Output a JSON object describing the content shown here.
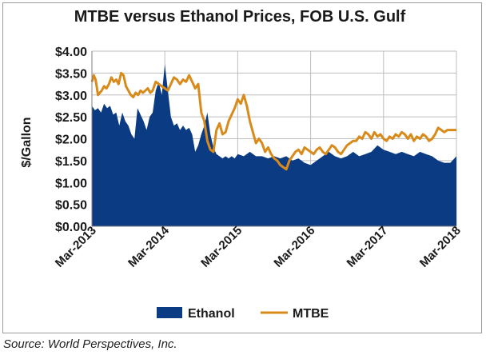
{
  "chart_data": {
    "type": "area",
    "title": "MTBE versus Ethanol Prices, FOB U.S. Gulf",
    "ylabel": "$/Gallon",
    "xlabel": "",
    "ylim": [
      0,
      4
    ],
    "yticks": [
      "$0.00",
      "$0.50",
      "$1.00",
      "$1.50",
      "$2.00",
      "$2.50",
      "$3.00",
      "$3.50",
      "$4.00"
    ],
    "yticks_values": [
      0,
      0.5,
      1,
      1.5,
      2,
      2.5,
      3,
      3.5,
      4
    ],
    "xlim": [
      0,
      60
    ],
    "xticks": [
      "Mar-2013",
      "Mar-2014",
      "Mar-2015",
      "Mar-2016",
      "Mar-2017",
      "Mar-2018"
    ],
    "xticks_values": [
      0,
      12,
      24,
      36,
      48,
      60
    ],
    "grid": true,
    "legend": "bottom",
    "series": [
      {
        "name": "Ethanol",
        "color": "#0b3b82",
        "kind": "area",
        "x": [
          0,
          0.5,
          1,
          1.5,
          2,
          2.5,
          3,
          3.5,
          4,
          4.5,
          5,
          5.5,
          6,
          6.5,
          7,
          7.5,
          8,
          8.5,
          9,
          9.5,
          10,
          10.5,
          11,
          11.5,
          12,
          12.5,
          13,
          13.5,
          14,
          14.5,
          15,
          15.5,
          16,
          16.5,
          17,
          17.5,
          18,
          18.5,
          19,
          19.5,
          20,
          20.5,
          21,
          21.5,
          22,
          22.5,
          23,
          23.5,
          24,
          25,
          26,
          27,
          28,
          29,
          30,
          31,
          32,
          33,
          34,
          35,
          36,
          37,
          38,
          39,
          40,
          41,
          42,
          43,
          44,
          45,
          46,
          47,
          48,
          49,
          50,
          51,
          52,
          53,
          54,
          55,
          56,
          57,
          58,
          59,
          60
        ],
        "y": [
          2.75,
          2.65,
          2.7,
          2.6,
          2.8,
          2.7,
          2.75,
          2.55,
          2.6,
          2.3,
          2.6,
          2.4,
          2.3,
          2.1,
          2.0,
          2.7,
          2.55,
          2.4,
          2.2,
          2.5,
          2.6,
          3.1,
          3.3,
          3.0,
          3.7,
          3.1,
          2.5,
          2.3,
          2.35,
          2.2,
          2.3,
          2.2,
          2.25,
          2.1,
          1.7,
          1.85,
          2.1,
          2.3,
          2.6,
          2.1,
          1.8,
          1.65,
          1.6,
          1.55,
          1.6,
          1.55,
          1.6,
          1.55,
          1.65,
          1.6,
          1.7,
          1.6,
          1.6,
          1.55,
          1.6,
          1.55,
          1.6,
          1.5,
          1.55,
          1.45,
          1.4,
          1.5,
          1.6,
          1.7,
          1.6,
          1.55,
          1.6,
          1.7,
          1.6,
          1.65,
          1.7,
          1.85,
          1.75,
          1.7,
          1.65,
          1.7,
          1.65,
          1.6,
          1.7,
          1.65,
          1.6,
          1.5,
          1.45,
          1.45,
          1.6
        ]
      },
      {
        "name": "MTBE",
        "color": "#d88a1a",
        "kind": "line",
        "x": [
          0,
          0.3,
          0.6,
          1,
          1.3,
          1.6,
          2,
          2.4,
          2.8,
          3.2,
          3.6,
          4,
          4.4,
          4.8,
          5.2,
          5.6,
          6,
          6.4,
          6.8,
          7.2,
          7.6,
          8,
          8.4,
          8.8,
          9.2,
          9.6,
          10,
          10.5,
          11,
          11.5,
          12,
          12.5,
          13,
          13.5,
          14,
          14.5,
          15,
          15.5,
          16,
          16.5,
          17,
          17.5,
          18,
          18.5,
          19,
          19.5,
          20,
          20.5,
          21,
          21.5,
          22,
          22.5,
          23,
          23.5,
          24,
          24.5,
          25,
          25.5,
          26,
          26.5,
          27,
          27.5,
          28,
          28.5,
          29,
          29.5,
          30,
          30.5,
          31,
          31.5,
          32,
          32.5,
          33,
          33.5,
          34,
          34.5,
          35,
          35.5,
          36,
          36.5,
          37,
          37.5,
          38,
          38.5,
          39,
          39.5,
          40,
          40.5,
          41,
          41.5,
          42,
          42.5,
          43,
          43.5,
          44,
          44.5,
          45,
          45.5,
          46,
          46.5,
          47,
          47.5,
          48,
          48.5,
          49,
          49.5,
          50,
          50.5,
          51,
          51.5,
          52,
          52.5,
          53,
          53.5,
          54,
          54.5,
          55,
          55.5,
          56,
          56.5,
          57,
          57.5,
          58,
          58.5,
          59,
          59.5,
          60
        ],
        "y": [
          3.3,
          3.45,
          3.35,
          3.0,
          3.05,
          3.1,
          3.2,
          3.15,
          3.25,
          3.4,
          3.3,
          3.35,
          3.25,
          3.5,
          3.45,
          3.2,
          3.1,
          3.0,
          2.95,
          3.05,
          3.0,
          3.1,
          3.05,
          3.1,
          3.15,
          3.05,
          3.1,
          3.3,
          3.25,
          3.2,
          3.15,
          3.1,
          3.25,
          3.4,
          3.35,
          3.25,
          3.35,
          3.3,
          3.45,
          3.3,
          3.15,
          3.25,
          2.6,
          2.4,
          1.95,
          1.75,
          1.7,
          2.2,
          2.35,
          2.1,
          2.15,
          2.4,
          2.55,
          2.7,
          2.9,
          2.8,
          3.0,
          2.75,
          2.4,
          2.15,
          1.9,
          2.0,
          1.9,
          1.7,
          1.8,
          1.65,
          1.55,
          1.5,
          1.4,
          1.35,
          1.3,
          1.5,
          1.6,
          1.7,
          1.75,
          1.65,
          1.8,
          1.75,
          1.7,
          1.65,
          1.75,
          1.8,
          1.7,
          1.65,
          1.75,
          1.85,
          1.8,
          1.7,
          1.65,
          1.75,
          1.85,
          1.9,
          1.95,
          1.95,
          2.05,
          2.0,
          2.15,
          2.1,
          2.0,
          2.15,
          2.05,
          2.1,
          2.0,
          1.95,
          2.05,
          2.0,
          2.1,
          2.05,
          2.15,
          2.1,
          2.0,
          2.1,
          1.95,
          2.05,
          2.0,
          2.1,
          2.05,
          1.95,
          2.0,
          2.1,
          2.25,
          2.2,
          2.15,
          2.2,
          2.2,
          2.2,
          2.2
        ]
      }
    ]
  },
  "source": "Source: World Perspectives, Inc."
}
